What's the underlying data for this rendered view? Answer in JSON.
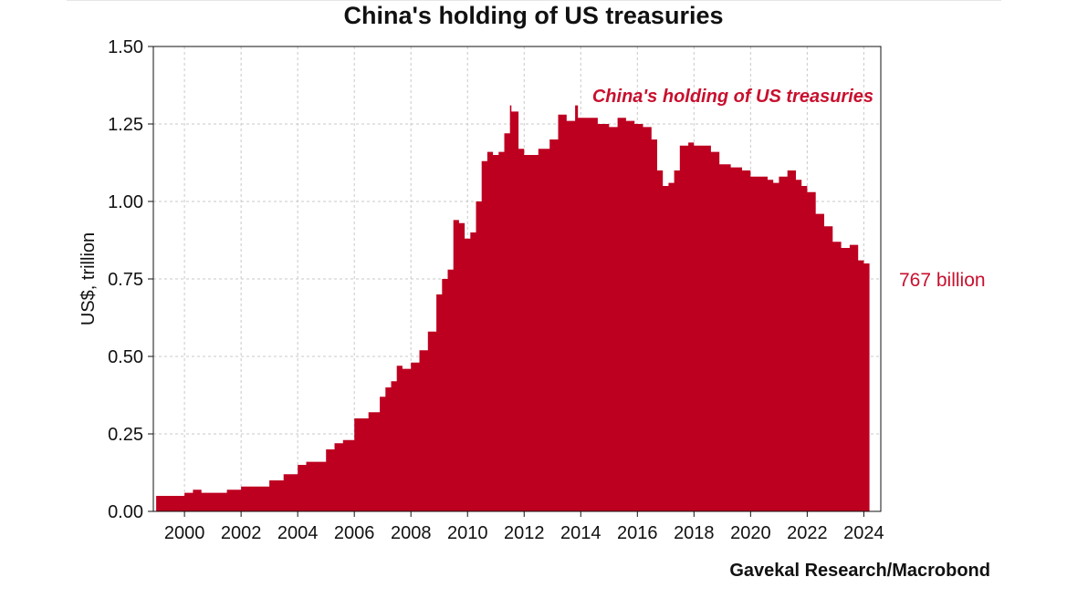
{
  "title": "China's holding of US treasuries",
  "source": "Gavekal Research/Macrobond",
  "colors": {
    "series": "#bd0020",
    "annotation": "#c8102e",
    "grid": "#c8c8c8",
    "text": "#111111"
  },
  "chart_data": {
    "type": "area",
    "title": "China's holding of US treasuries",
    "xlabel": "",
    "ylabel": "US$, trillion",
    "xlim": [
      1998.9,
      2024.6
    ],
    "ylim": [
      0,
      1.5
    ],
    "grid": true,
    "legend": "top-right",
    "x_ticks": [
      "2000",
      "2002",
      "2004",
      "2006",
      "2008",
      "2010",
      "2012",
      "2014",
      "2016",
      "2018",
      "2020",
      "2022",
      "2024"
    ],
    "y_ticks": [
      "0.00",
      "0.25",
      "0.50",
      "0.75",
      "1.00",
      "1.25",
      "1.50"
    ],
    "series": [
      {
        "name": "China's holding of US treasuries",
        "x": [
          1999.0,
          1999.5,
          2000.0,
          2000.3,
          2000.6,
          2001.0,
          2001.5,
          2002.0,
          2002.5,
          2003.0,
          2003.5,
          2004.0,
          2004.3,
          2004.6,
          2005.0,
          2005.3,
          2005.6,
          2006.0,
          2006.5,
          2006.9,
          2007.1,
          2007.3,
          2007.5,
          2007.7,
          2008.0,
          2008.3,
          2008.6,
          2008.9,
          2009.1,
          2009.3,
          2009.5,
          2009.7,
          2009.9,
          2010.1,
          2010.3,
          2010.5,
          2010.7,
          2010.9,
          2011.1,
          2011.3,
          2011.5,
          2011.55,
          2011.8,
          2011.9,
          2012.0,
          2012.5,
          2012.9,
          2013.2,
          2013.5,
          2013.8,
          2013.9,
          2014.2,
          2014.6,
          2015.0,
          2015.3,
          2015.6,
          2015.9,
          2016.2,
          2016.5,
          2016.7,
          2016.9,
          2017.1,
          2017.3,
          2017.5,
          2017.8,
          2018.0,
          2018.3,
          2018.6,
          2018.9,
          2019.3,
          2019.7,
          2020.0,
          2020.3,
          2020.6,
          2020.8,
          2021.0,
          2021.3,
          2021.6,
          2021.8,
          2022.0,
          2022.3,
          2022.6,
          2022.9,
          2023.2,
          2023.5,
          2023.8,
          2024.0,
          2024.2
        ],
        "values": [
          0.05,
          0.05,
          0.06,
          0.07,
          0.06,
          0.06,
          0.07,
          0.08,
          0.08,
          0.1,
          0.12,
          0.15,
          0.16,
          0.16,
          0.2,
          0.22,
          0.23,
          0.3,
          0.32,
          0.37,
          0.4,
          0.42,
          0.47,
          0.46,
          0.48,
          0.52,
          0.58,
          0.7,
          0.75,
          0.78,
          0.94,
          0.93,
          0.88,
          0.9,
          1.0,
          1.13,
          1.16,
          1.15,
          1.16,
          1.22,
          1.31,
          1.29,
          1.17,
          1.17,
          1.15,
          1.17,
          1.2,
          1.28,
          1.26,
          1.31,
          1.27,
          1.27,
          1.25,
          1.24,
          1.27,
          1.26,
          1.25,
          1.24,
          1.2,
          1.1,
          1.05,
          1.06,
          1.1,
          1.18,
          1.19,
          1.18,
          1.18,
          1.16,
          1.12,
          1.11,
          1.1,
          1.08,
          1.08,
          1.07,
          1.06,
          1.08,
          1.1,
          1.07,
          1.05,
          1.03,
          0.96,
          0.92,
          0.87,
          0.85,
          0.86,
          0.81,
          0.8,
          0.767
        ]
      }
    ],
    "annotations": [
      "767 billion"
    ]
  }
}
